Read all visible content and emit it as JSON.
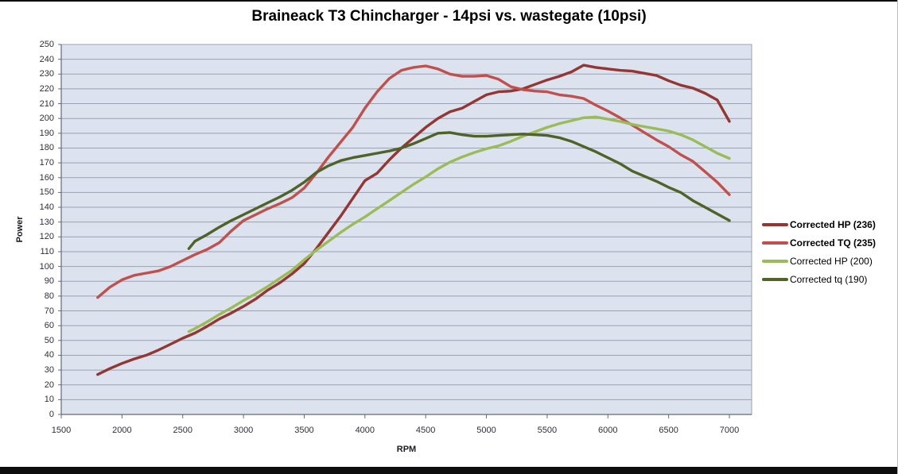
{
  "chart_data": {
    "type": "line",
    "title": "Braineack T3 Chincharger - 14psi vs. wastegate (10psi)",
    "xlabel": "RPM",
    "ylabel": "Power",
    "xlim": [
      1500,
      7183
    ],
    "ylim": [
      0,
      250
    ],
    "ytick_step": 10,
    "xticks": [
      1500,
      2000,
      2500,
      3000,
      3500,
      4000,
      4500,
      5000,
      5500,
      6000,
      6500,
      7000
    ],
    "grid": "horizontal",
    "legend_position": "right",
    "colors": {
      "plot_background": "#dce3ee",
      "gridline": "#98a2b3",
      "axis": "#5f6b7d",
      "tick_text": "#2e2f3a",
      "title_text": "#000000"
    },
    "series": [
      {
        "name": "Corrected HP (236)",
        "color": "#943634",
        "bold_legend": true,
        "points": [
          [
            1800,
            27
          ],
          [
            1900,
            31
          ],
          [
            2000,
            34.5
          ],
          [
            2100,
            37.5
          ],
          [
            2200,
            40
          ],
          [
            2300,
            43.5
          ],
          [
            2400,
            47.5
          ],
          [
            2500,
            51.5
          ],
          [
            2600,
            55
          ],
          [
            2700,
            59.5
          ],
          [
            2800,
            64.5
          ],
          [
            2900,
            68.5
          ],
          [
            3000,
            73
          ],
          [
            3100,
            78
          ],
          [
            3200,
            84
          ],
          [
            3300,
            89
          ],
          [
            3400,
            95
          ],
          [
            3500,
            102
          ],
          [
            3600,
            112
          ],
          [
            3700,
            123
          ],
          [
            3800,
            134
          ],
          [
            3900,
            146
          ],
          [
            4000,
            158
          ],
          [
            4100,
            163
          ],
          [
            4200,
            172
          ],
          [
            4300,
            180
          ],
          [
            4400,
            187
          ],
          [
            4500,
            194
          ],
          [
            4600,
            200
          ],
          [
            4700,
            204.5
          ],
          [
            4800,
            207
          ],
          [
            4900,
            211.5
          ],
          [
            5000,
            216
          ],
          [
            5100,
            218
          ],
          [
            5200,
            218.5
          ],
          [
            5300,
            220
          ],
          [
            5400,
            223
          ],
          [
            5500,
            226
          ],
          [
            5600,
            228.5
          ],
          [
            5700,
            231.5
          ],
          [
            5800,
            236
          ],
          [
            5900,
            234.5
          ],
          [
            6000,
            233.5
          ],
          [
            6100,
            232.5
          ],
          [
            6200,
            232
          ],
          [
            6300,
            230.5
          ],
          [
            6400,
            229
          ],
          [
            6500,
            225.5
          ],
          [
            6600,
            222.5
          ],
          [
            6700,
            220.5
          ],
          [
            6800,
            217
          ],
          [
            6900,
            212.5
          ],
          [
            7000,
            198
          ]
        ]
      },
      {
        "name": "Corrected TQ (235)",
        "color": "#c0504d",
        "bold_legend": true,
        "points": [
          [
            1800,
            79
          ],
          [
            1900,
            86
          ],
          [
            2000,
            91
          ],
          [
            2100,
            94
          ],
          [
            2200,
            95.5
          ],
          [
            2300,
            97
          ],
          [
            2400,
            100
          ],
          [
            2500,
            104
          ],
          [
            2600,
            108
          ],
          [
            2700,
            111.5
          ],
          [
            2800,
            116
          ],
          [
            2900,
            124
          ],
          [
            3000,
            131
          ],
          [
            3100,
            135
          ],
          [
            3200,
            139
          ],
          [
            3300,
            142.5
          ],
          [
            3400,
            146.5
          ],
          [
            3500,
            153
          ],
          [
            3600,
            163
          ],
          [
            3700,
            174
          ],
          [
            3800,
            184
          ],
          [
            3900,
            194
          ],
          [
            4000,
            207
          ],
          [
            4100,
            218
          ],
          [
            4200,
            227
          ],
          [
            4300,
            232.5
          ],
          [
            4400,
            234.5
          ],
          [
            4500,
            235.5
          ],
          [
            4600,
            233.5
          ],
          [
            4700,
            230
          ],
          [
            4800,
            228.5
          ],
          [
            4900,
            228.5
          ],
          [
            5000,
            229
          ],
          [
            5100,
            226.5
          ],
          [
            5200,
            221.5
          ],
          [
            5300,
            219.5
          ],
          [
            5400,
            218.5
          ],
          [
            5500,
            218
          ],
          [
            5600,
            216
          ],
          [
            5700,
            215
          ],
          [
            5800,
            213.5
          ],
          [
            5900,
            209
          ],
          [
            6000,
            205
          ],
          [
            6100,
            200.5
          ],
          [
            6200,
            195.5
          ],
          [
            6300,
            190.5
          ],
          [
            6400,
            185.5
          ],
          [
            6500,
            181
          ],
          [
            6600,
            175.5
          ],
          [
            6700,
            171
          ],
          [
            6800,
            164
          ],
          [
            6900,
            157
          ],
          [
            7000,
            148.5
          ]
        ]
      },
      {
        "name": "Corrected HP (200)",
        "color": "#9bbb59",
        "bold_legend": false,
        "points": [
          [
            2550,
            56
          ],
          [
            2600,
            58
          ],
          [
            2700,
            62.5
          ],
          [
            2800,
            67.5
          ],
          [
            2900,
            72
          ],
          [
            3000,
            77
          ],
          [
            3100,
            81.5
          ],
          [
            3200,
            86.5
          ],
          [
            3300,
            92
          ],
          [
            3400,
            97.5
          ],
          [
            3500,
            104.5
          ],
          [
            3600,
            111
          ],
          [
            3700,
            117
          ],
          [
            3800,
            123
          ],
          [
            3900,
            128.5
          ],
          [
            4000,
            133.5
          ],
          [
            4100,
            139
          ],
          [
            4200,
            144.5
          ],
          [
            4300,
            150
          ],
          [
            4400,
            155.5
          ],
          [
            4500,
            160.5
          ],
          [
            4600,
            166
          ],
          [
            4700,
            170.5
          ],
          [
            4800,
            174
          ],
          [
            4900,
            177
          ],
          [
            5000,
            179.5
          ],
          [
            5100,
            181.5
          ],
          [
            5200,
            184.5
          ],
          [
            5300,
            188
          ],
          [
            5400,
            191
          ],
          [
            5500,
            194
          ],
          [
            5600,
            196.5
          ],
          [
            5700,
            198.5
          ],
          [
            5800,
            200.5
          ],
          [
            5900,
            201
          ],
          [
            6000,
            199.5
          ],
          [
            6100,
            198
          ],
          [
            6200,
            196
          ],
          [
            6300,
            194.5
          ],
          [
            6400,
            193
          ],
          [
            6500,
            191.5
          ],
          [
            6600,
            189
          ],
          [
            6700,
            185.5
          ],
          [
            6800,
            181
          ],
          [
            6900,
            176.5
          ],
          [
            7000,
            173
          ]
        ]
      },
      {
        "name": "Corrected tq (190)",
        "color": "#4f6228",
        "bold_legend": false,
        "points": [
          [
            2550,
            112
          ],
          [
            2600,
            117
          ],
          [
            2700,
            121.5
          ],
          [
            2800,
            126.5
          ],
          [
            2900,
            131
          ],
          [
            3000,
            135
          ],
          [
            3100,
            139
          ],
          [
            3200,
            143
          ],
          [
            3300,
            147
          ],
          [
            3400,
            151.5
          ],
          [
            3500,
            157
          ],
          [
            3600,
            163.5
          ],
          [
            3700,
            168
          ],
          [
            3800,
            171.5
          ],
          [
            3900,
            173.5
          ],
          [
            4000,
            175
          ],
          [
            4100,
            176.5
          ],
          [
            4200,
            178
          ],
          [
            4300,
            180
          ],
          [
            4400,
            183
          ],
          [
            4500,
            186.5
          ],
          [
            4600,
            190
          ],
          [
            4700,
            190.5
          ],
          [
            4800,
            189
          ],
          [
            4900,
            188
          ],
          [
            5000,
            188
          ],
          [
            5100,
            188.5
          ],
          [
            5200,
            189
          ],
          [
            5300,
            189.5
          ],
          [
            5400,
            189
          ],
          [
            5500,
            188.5
          ],
          [
            5600,
            187
          ],
          [
            5700,
            184.5
          ],
          [
            5800,
            181
          ],
          [
            5900,
            177.5
          ],
          [
            6000,
            173.5
          ],
          [
            6100,
            169.5
          ],
          [
            6200,
            164.5
          ],
          [
            6300,
            161
          ],
          [
            6400,
            157.5
          ],
          [
            6500,
            153.5
          ],
          [
            6600,
            150
          ],
          [
            6700,
            144.5
          ],
          [
            6800,
            140
          ],
          [
            6900,
            135.5
          ],
          [
            7000,
            131
          ]
        ]
      }
    ]
  }
}
